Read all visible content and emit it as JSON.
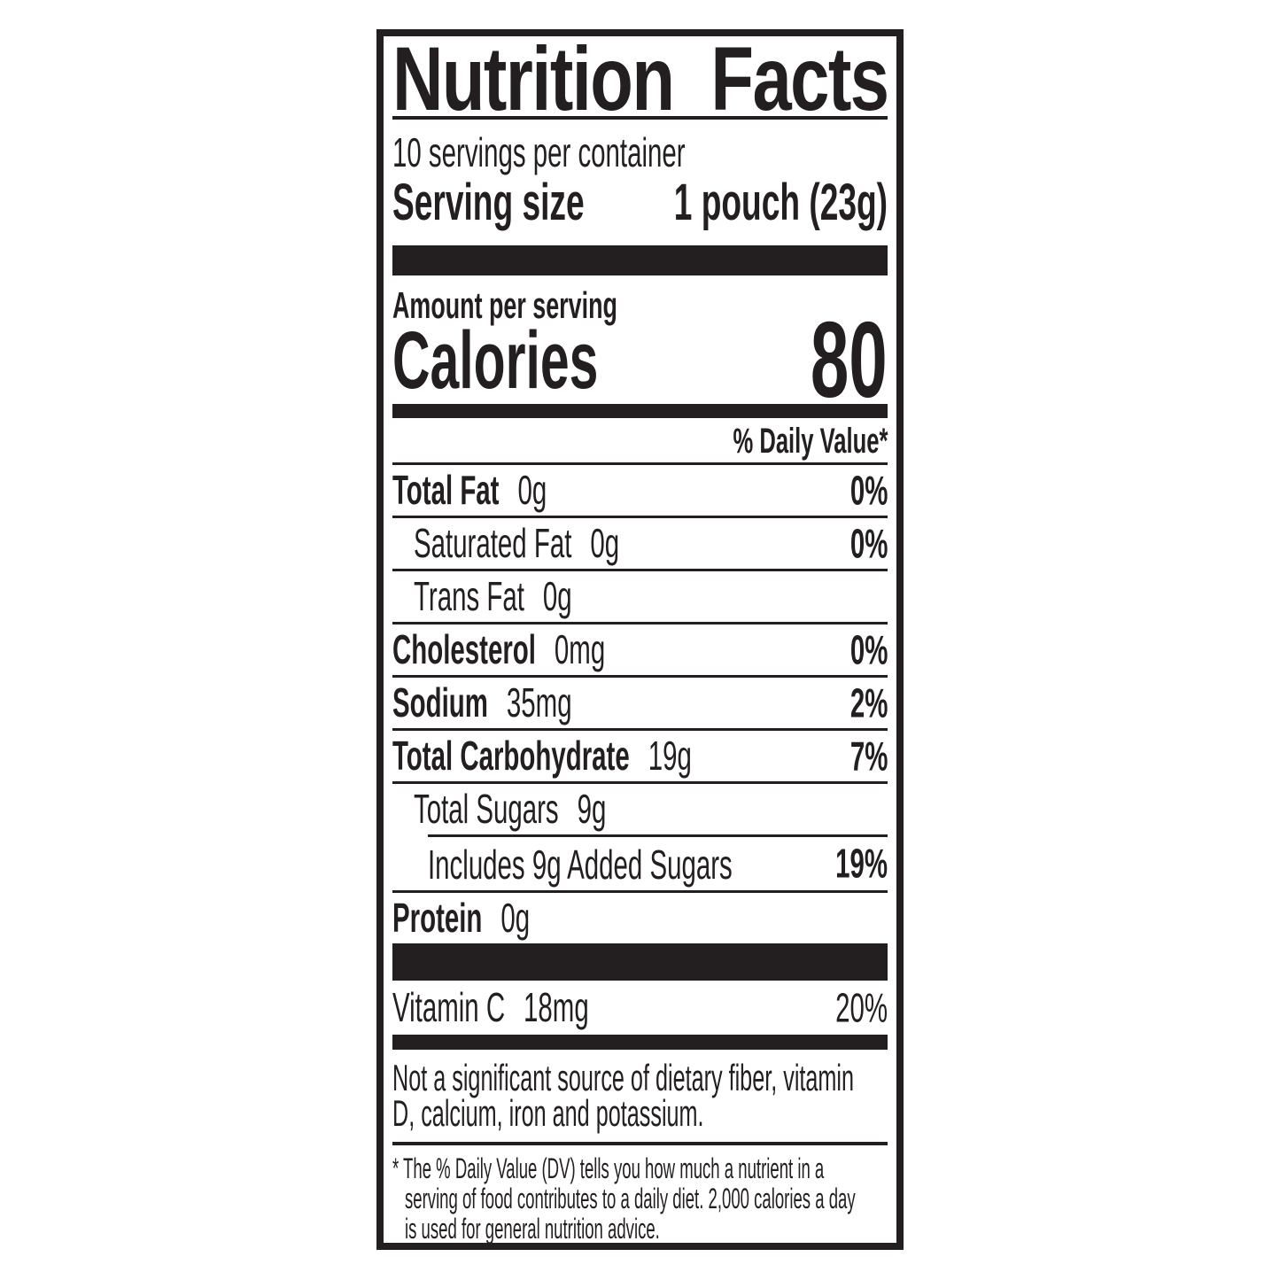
{
  "colors": {
    "ink": "#231f20",
    "background": "#ffffff"
  },
  "label": {
    "title": {
      "left": "Nutrition",
      "right": "Facts"
    },
    "servings_per_container": "10 servings per container",
    "serving_size": {
      "name": "Serving size",
      "value": "1 pouch (23g)"
    },
    "amount_per_serving": "Amount per serving",
    "calories": {
      "name": "Calories",
      "value": "80"
    },
    "daily_value_header": "% Daily Value*",
    "rows": [
      {
        "name": "Total Fat",
        "amount": "0g",
        "dv": "0%"
      },
      {
        "name": "Saturated Fat",
        "amount": "0g",
        "dv": "0%"
      },
      {
        "name": "Trans Fat",
        "amount": "0g",
        "dv": ""
      },
      {
        "name": "Cholesterol",
        "amount": "0mg",
        "dv": "0%"
      },
      {
        "name": "Sodium",
        "amount": "35mg",
        "dv": "2%"
      },
      {
        "name": "Total Carbohydrate",
        "amount": "19g",
        "dv": "7%"
      },
      {
        "name": "Total Sugars",
        "amount": "9g",
        "dv": ""
      },
      {
        "name": "Includes 9g Added Sugars",
        "amount": "",
        "dv": "19%"
      },
      {
        "name": "Protein",
        "amount": "0g",
        "dv": ""
      }
    ],
    "micronutrients": [
      {
        "name": "Vitamin C",
        "amount": "18mg",
        "dv": "20%"
      }
    ],
    "insignificant_note": {
      "line1": "Not a significant source of dietary fiber, vitamin",
      "line2": "D, calcium, iron and potassium."
    },
    "footnote": {
      "marker": "*",
      "line1": "The % Daily Value (DV) tells you how much a nutrient in a",
      "line2": "serving of food contributes to a daily diet. 2,000 calories a day",
      "line3": "is used for general nutrition advice."
    }
  }
}
